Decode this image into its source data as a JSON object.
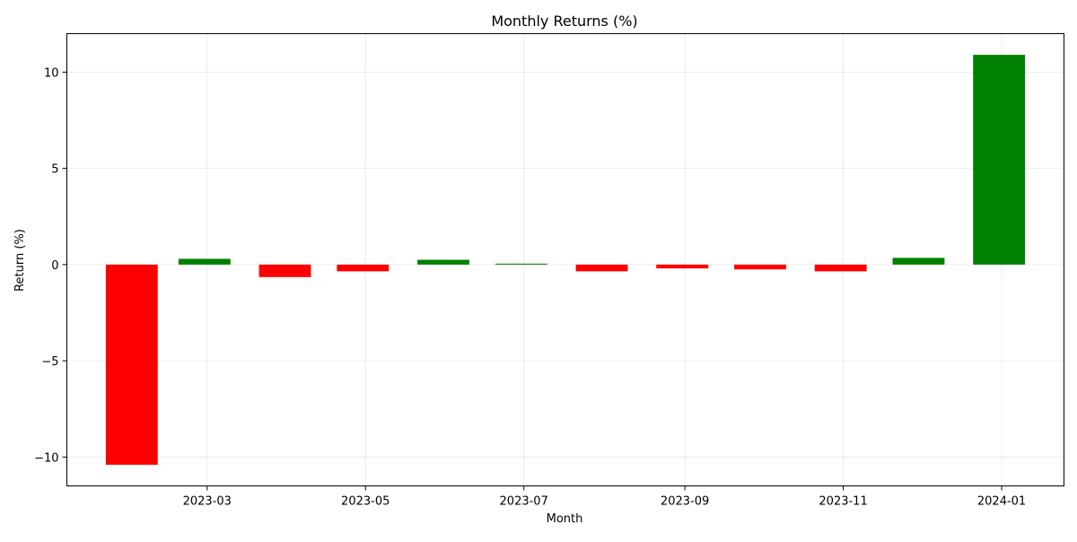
{
  "chart_data": {
    "type": "bar",
    "title": "Monthly Returns (%)",
    "xlabel": "Month",
    "ylabel": "Return (%)",
    "categories": [
      "2023-01-31",
      "2023-02-28",
      "2023-03-31",
      "2023-04-30",
      "2023-05-31",
      "2023-06-30",
      "2023-07-31",
      "2023-08-31",
      "2023-09-30",
      "2023-10-31",
      "2023-11-30",
      "2023-12-31"
    ],
    "values": [
      -10.4,
      0.3,
      -0.65,
      -0.35,
      0.25,
      0.05,
      -0.35,
      -0.2,
      -0.25,
      -0.35,
      0.35,
      10.9
    ],
    "x_ticks": [
      "2023-03",
      "2023-05",
      "2023-07",
      "2023-09",
      "2023-11",
      "2024-01"
    ],
    "x_range": [
      "2023-01-06",
      "2024-01-25"
    ],
    "y_ticks": [
      "10",
      "5",
      "0",
      "−5",
      "−10"
    ],
    "y_tick_values": [
      10,
      5,
      0,
      -5,
      -10
    ],
    "ylim": [
      -11.5,
      12
    ],
    "colors": {
      "positive": "#008000",
      "negative": "#ff0000"
    },
    "grid": true
  }
}
